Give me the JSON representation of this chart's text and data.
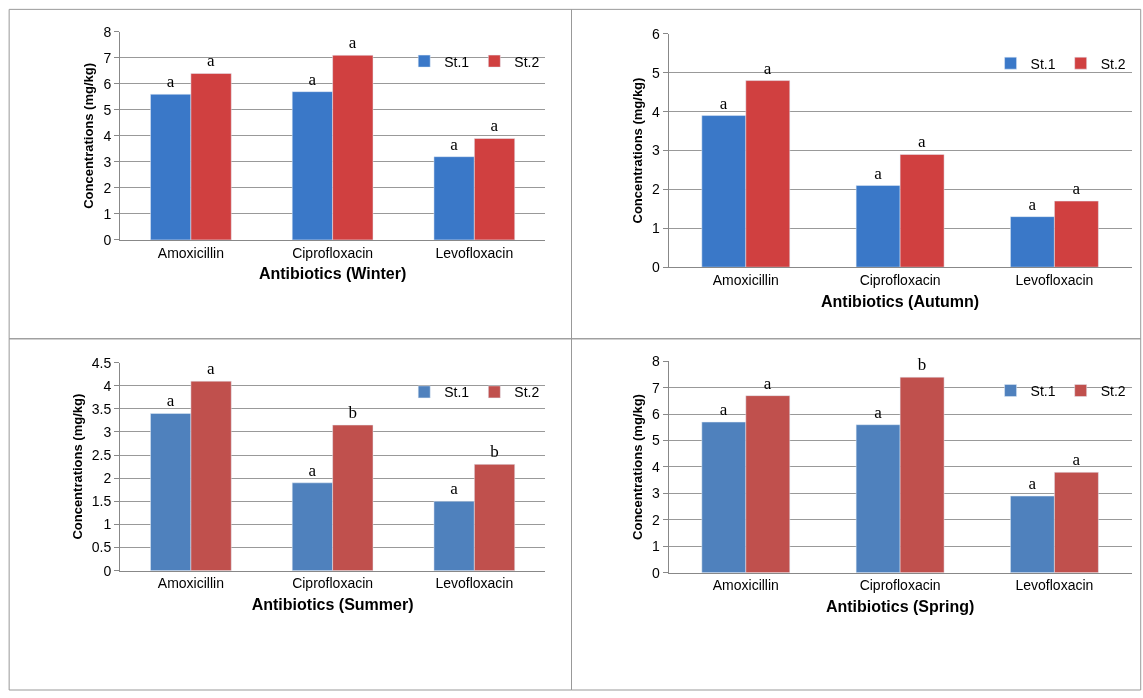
{
  "chart_data": [
    {
      "type": "bar",
      "xlabel": "Antibiotics (Winter)",
      "ylabel": "Concentrations (mg/kg)",
      "categories": [
        "Amoxicillin",
        "Ciprofloxacin",
        "Levofloxacin"
      ],
      "ylim": [
        0,
        8
      ],
      "yticks": [
        0,
        1,
        2,
        3,
        4,
        5,
        6,
        7,
        8
      ],
      "grid": "y",
      "legend": "top right",
      "series": [
        {
          "name": "St.1",
          "color": "#3a78c8",
          "values": [
            5.6,
            5.7,
            3.2
          ],
          "value_labels": [
            "a",
            "a",
            "a"
          ]
        },
        {
          "name": "St.2",
          "color": "#d04040",
          "values": [
            6.4,
            7.1,
            3.9
          ],
          "value_labels": [
            "a",
            "a",
            "a"
          ]
        }
      ]
    },
    {
      "type": "bar",
      "xlabel": "Antibiotics (Autumn)",
      "ylabel": "Concentrations (mg/kg)",
      "categories": [
        "Amoxicillin",
        "Ciprofloxacin",
        "Levofloxacin"
      ],
      "ylim": [
        0,
        6
      ],
      "yticks": [
        0,
        1,
        2,
        3,
        4,
        5,
        6
      ],
      "grid": "y",
      "legend": "top right",
      "series": [
        {
          "name": "St.1",
          "color": "#3a78c8",
          "values": [
            3.9,
            2.1,
            1.3
          ],
          "value_labels": [
            "a",
            "a",
            "a"
          ]
        },
        {
          "name": "St.2",
          "color": "#d04040",
          "values": [
            4.8,
            2.9,
            1.7
          ],
          "value_labels": [
            "a",
            "a",
            "a"
          ]
        }
      ]
    },
    {
      "type": "bar",
      "xlabel": "Antibiotics (Summer)",
      "ylabel": "Concentrations (mg/kg)",
      "categories": [
        "Amoxicillin",
        "Ciprofloxacin",
        "Levofloxacin"
      ],
      "ylim": [
        0,
        4.5
      ],
      "yticks": [
        0,
        0.5,
        1,
        1.5,
        2,
        2.5,
        3,
        3.5,
        4,
        4.5
      ],
      "grid": "y",
      "legend": "top right",
      "series": [
        {
          "name": "St.1",
          "color": "#4f81bd",
          "values": [
            3.4,
            1.9,
            1.5
          ],
          "value_labels": [
            "a",
            "a",
            "a"
          ]
        },
        {
          "name": "St.2",
          "color": "#c0504d",
          "values": [
            4.1,
            3.15,
            2.3
          ],
          "value_labels": [
            "a",
            "b",
            "b"
          ]
        }
      ]
    },
    {
      "type": "bar",
      "xlabel": "Antibiotics (Spring)",
      "ylabel": "Concentrations (mg/kg)",
      "categories": [
        "Amoxicillin",
        "Ciprofloxacin",
        "Levofloxacin"
      ],
      "ylim": [
        0,
        8
      ],
      "yticks": [
        0,
        1,
        2,
        3,
        4,
        5,
        6,
        7,
        8
      ],
      "grid": "y",
      "legend": "top right",
      "series": [
        {
          "name": "St.1",
          "color": "#4f81bd",
          "values": [
            5.7,
            5.6,
            2.9
          ],
          "value_labels": [
            "a",
            "a",
            "a"
          ]
        },
        {
          "name": "St.2",
          "color": "#c0504d",
          "values": [
            6.7,
            7.4,
            3.8
          ],
          "value_labels": [
            "a",
            "b",
            "a"
          ]
        }
      ]
    }
  ]
}
